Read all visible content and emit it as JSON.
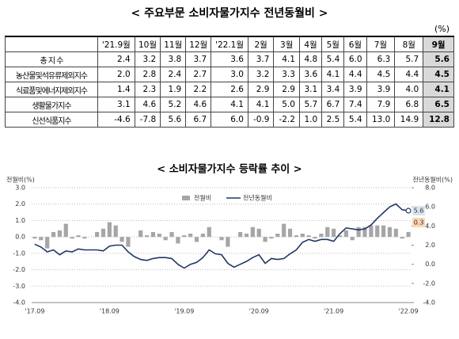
{
  "table": {
    "title": "< 주요부문 소비자물가지수 전년동월비 >",
    "unit": "(%)",
    "columns": [
      "'21.9월",
      "10월",
      "11월",
      "12월",
      "'22.1월",
      "2월",
      "3월",
      "4월",
      "5월",
      "6월",
      "7월",
      "8월",
      "9월"
    ],
    "rows": [
      {
        "label": "총 지 수",
        "values": [
          "2.4",
          "3.2",
          "3.8",
          "3.7",
          "3.6",
          "3.7",
          "4.1",
          "4.8",
          "5.4",
          "6.0",
          "6.3",
          "5.7",
          "5.6"
        ]
      },
      {
        "label": "농산물및석유류제외지수",
        "values": [
          "2.0",
          "2.8",
          "2.4",
          "2.7",
          "3.0",
          "3.2",
          "3.3",
          "3.6",
          "4.1",
          "4.4",
          "4.5",
          "4.4",
          "4.5"
        ]
      },
      {
        "label": "식료품및에너지제외지수",
        "values": [
          "1.4",
          "2.3",
          "1.9",
          "2.2",
          "2.6",
          "2.9",
          "2.9",
          "3.1",
          "3.4",
          "3.9",
          "3.9",
          "4.0",
          "4.1"
        ]
      },
      {
        "label": "생활물가지수",
        "values": [
          "3.1",
          "4.6",
          "5.2",
          "4.6",
          "4.1",
          "4.1",
          "5.0",
          "5.7",
          "6.7",
          "7.4",
          "7.9",
          "6.8",
          "6.5"
        ]
      },
      {
        "label": "신선식품지수",
        "values": [
          "-4.6",
          "-7.8",
          "5.6",
          "6.7",
          "6.0",
          "-0.9",
          "-2.2",
          "1.0",
          "2.5",
          "5.4",
          "13.0",
          "14.9",
          "12.8"
        ]
      }
    ]
  },
  "chart_data": {
    "type": "combo",
    "title": "< 소비자물가지수 등락률 추이 >",
    "y_label": "전월비(%)",
    "y2_label": "전년동월비(%)",
    "grid": true,
    "categories": [
      "'17.09",
      null,
      null,
      null,
      null,
      null,
      null,
      null,
      null,
      null,
      null,
      null,
      "'18.09",
      null,
      null,
      null,
      null,
      null,
      null,
      null,
      null,
      null,
      null,
      null,
      "'19.09",
      null,
      null,
      null,
      null,
      null,
      null,
      null,
      null,
      null,
      null,
      null,
      "'20.09",
      null,
      null,
      null,
      null,
      null,
      null,
      null,
      null,
      null,
      null,
      null,
      "'21.09",
      null,
      null,
      null,
      null,
      null,
      null,
      null,
      null,
      null,
      null,
      null,
      "'22.09"
    ],
    "ylim": [
      -4,
      3
    ],
    "yticks": [
      {
        "value": -4,
        "label": "-4.0"
      },
      {
        "value": -3,
        "label": "-3.0"
      },
      {
        "value": -2,
        "label": "-2.0"
      },
      {
        "value": -1,
        "label": "-1.0"
      },
      {
        "value": 0,
        "label": "0.0"
      },
      {
        "value": 1,
        "label": "1.0"
      },
      {
        "value": 2,
        "label": "2.0"
      },
      {
        "value": 3,
        "label": "3.0"
      }
    ],
    "y2lim": [
      -4,
      8
    ],
    "y2ticks": [
      {
        "value": -4,
        "label": "-4.0"
      },
      {
        "value": -2,
        "label": "-2.0"
      },
      {
        "value": 0,
        "label": "0.0"
      },
      {
        "value": 2,
        "label": "2.0"
      },
      {
        "value": 4,
        "label": "4.0"
      },
      {
        "value": 6,
        "label": "6.0"
      },
      {
        "value": 8,
        "label": "8.0"
      }
    ],
    "series": [
      {
        "name": "전월비",
        "type": "bar",
        "color": "#a6a6a6",
        "values": [
          -0.1,
          -0.2,
          -0.7,
          0.3,
          0.4,
          0.8,
          -0.1,
          0.1,
          -0.1,
          0.0,
          0.3,
          0.5,
          0.9,
          0.7,
          -0.3,
          -0.6,
          0.0,
          0.4,
          0.1,
          0.3,
          0.2,
          -0.2,
          0.3,
          -0.4,
          0.1,
          0.2,
          -0.3,
          0.2,
          0.6,
          0.0,
          -0.2,
          -0.6,
          0.0,
          0.3,
          0.2,
          0.6,
          0.5,
          -0.3,
          -0.1,
          0.2,
          0.8,
          0.5,
          0.1,
          0.2,
          0.1,
          -0.1,
          0.2,
          0.6,
          0.5,
          0.1,
          0.4,
          -0.2,
          0.6,
          0.6,
          0.7,
          0.7,
          0.7,
          0.6,
          0.5,
          -0.1,
          0.3
        ],
        "value_labels": [
          null,
          null,
          null,
          null,
          null,
          null,
          null,
          null,
          null,
          null,
          null,
          null,
          null,
          null,
          null,
          null,
          null,
          null,
          null,
          null,
          null,
          null,
          null,
          null,
          null,
          null,
          null,
          null,
          null,
          null,
          null,
          null,
          null,
          null,
          null,
          null,
          null,
          null,
          null,
          null,
          null,
          null,
          null,
          null,
          null,
          null,
          null,
          null,
          null,
          null,
          null,
          null,
          null,
          null,
          null,
          null,
          null,
          null,
          null,
          null,
          "0.3"
        ]
      },
      {
        "name": "전년동월비",
        "type": "line",
        "axis": "y2",
        "color": "#1f3864",
        "values": [
          2.1,
          1.8,
          1.3,
          1.5,
          1.0,
          1.4,
          1.3,
          1.6,
          1.5,
          1.5,
          1.5,
          1.4,
          1.9,
          2.0,
          2.0,
          1.3,
          0.8,
          0.5,
          0.4,
          0.6,
          0.7,
          0.7,
          0.6,
          0.0,
          -0.4,
          0.0,
          0.2,
          0.7,
          1.5,
          1.1,
          1.0,
          0.1,
          -0.3,
          0.0,
          0.3,
          0.7,
          1.0,
          0.1,
          0.6,
          0.5,
          0.6,
          1.1,
          1.5,
          2.3,
          2.6,
          2.4,
          2.6,
          2.6,
          2.4,
          3.2,
          3.8,
          3.7,
          3.6,
          3.7,
          4.1,
          4.8,
          5.4,
          6.0,
          6.3,
          5.7,
          5.6
        ],
        "value_labels": [
          null,
          null,
          null,
          null,
          null,
          null,
          null,
          null,
          null,
          null,
          null,
          null,
          null,
          null,
          null,
          null,
          null,
          null,
          null,
          null,
          null,
          null,
          null,
          null,
          null,
          null,
          null,
          null,
          null,
          null,
          null,
          null,
          null,
          null,
          null,
          null,
          null,
          null,
          null,
          null,
          null,
          null,
          null,
          null,
          null,
          null,
          null,
          null,
          null,
          null,
          null,
          null,
          null,
          null,
          null,
          null,
          null,
          null,
          null,
          null,
          "5.6"
        ]
      }
    ]
  }
}
